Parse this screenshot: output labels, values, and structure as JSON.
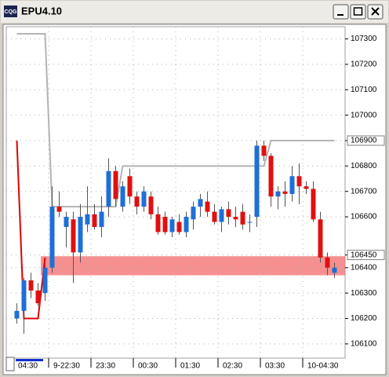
{
  "window": {
    "title": "EPU4.10",
    "icon_label": "CQG"
  },
  "chart_data": {
    "type": "candlestick",
    "categories": [
      "04:30",
      null,
      null,
      null,
      null,
      "9-22:30",
      null,
      null,
      null,
      null,
      null,
      "23:30",
      null,
      null,
      null,
      null,
      null,
      "00:30",
      null,
      null,
      null,
      null,
      null,
      "01:30",
      null,
      null,
      null,
      null,
      null,
      "02:30",
      null,
      null,
      null,
      null,
      null,
      "03:30",
      null,
      null,
      null,
      null,
      null,
      "10-04:30",
      null,
      null,
      null,
      null
    ],
    "open": [
      106200,
      106230,
      106350,
      106310,
      106300,
      106400,
      106640,
      106560,
      106590,
      106460,
      106570,
      106610,
      106560,
      106640,
      106780,
      106640,
      106760,
      106680,
      106640,
      106680,
      106610,
      106600,
      106540,
      106580,
      106540,
      106590,
      106640,
      106660,
      106620,
      106580,
      106630,
      106600,
      106620,
      106580,
      106600,
      106880,
      106840,
      106680,
      106700,
      106690,
      106760,
      106720,
      106710,
      106590,
      106440,
      106380
    ],
    "high": [
      106260,
      106360,
      106380,
      106340,
      106420,
      106720,
      106700,
      106620,
      106620,
      106650,
      106720,
      106650,
      106680,
      106830,
      106800,
      106740,
      106790,
      106700,
      106720,
      106700,
      106640,
      106620,
      106600,
      106610,
      106620,
      106660,
      106690,
      106700,
      106650,
      106640,
      106660,
      106640,
      106650,
      106610,
      106900,
      106900,
      106850,
      106720,
      106740,
      106800,
      106810,
      106740,
      106740,
      106620,
      106460,
      106420
    ],
    "low": [
      106180,
      106140,
      106280,
      106250,
      106270,
      106380,
      106600,
      106480,
      106340,
      106420,
      106540,
      106550,
      106520,
      106600,
      106640,
      106620,
      106650,
      106610,
      106620,
      106590,
      106530,
      106530,
      106520,
      106530,
      106520,
      106550,
      106600,
      106600,
      106570,
      106540,
      106570,
      106560,
      106550,
      106540,
      106560,
      106820,
      106640,
      106630,
      106640,
      106660,
      106650,
      106690,
      106580,
      106420,
      106370,
      106360
    ],
    "close": [
      106230,
      106350,
      106310,
      106260,
      106400,
      106640,
      106620,
      106600,
      106460,
      106600,
      106610,
      106560,
      106620,
      106780,
      106670,
      106720,
      106680,
      106640,
      106700,
      106610,
      106540,
      106540,
      106590,
      106540,
      106600,
      106640,
      106670,
      106620,
      106580,
      106630,
      106600,
      106590,
      106570,
      106580,
      106880,
      106840,
      106680,
      106700,
      106690,
      106760,
      106720,
      106710,
      106590,
      106440,
      106400,
      106400
    ],
    "up_color": "#1e6fd6",
    "down_color": "#e01010",
    "lines": [
      {
        "color": "#e00000",
        "values": [
          106900,
          106200,
          106200,
          106200,
          106440,
          null,
          null,
          null,
          null,
          null,
          null,
          null,
          null,
          null,
          null,
          null,
          null,
          null,
          null,
          null,
          null,
          null,
          null,
          null,
          null,
          null,
          null,
          null,
          null,
          null,
          null,
          null,
          null,
          null,
          null,
          null,
          null,
          null,
          null,
          null,
          null,
          null,
          null,
          null,
          null,
          null
        ]
      },
      {
        "color": "#b4b4b4",
        "values": [
          107320,
          107320,
          107320,
          107320,
          107320,
          106640,
          106640,
          106640,
          106640,
          106640,
          106640,
          106640,
          106640,
          106640,
          106640,
          106800,
          106800,
          106800,
          106800,
          106800,
          106800,
          106800,
          106800,
          106800,
          106800,
          106800,
          106800,
          106800,
          106800,
          106800,
          106800,
          106800,
          106800,
          106800,
          106800,
          106800,
          106900,
          106900,
          106900,
          106900,
          106900,
          106900,
          106900,
          106900,
          106900,
          106900
        ]
      }
    ],
    "band": {
      "range": [
        106370,
        106445
      ],
      "color": "#f36b6b"
    },
    "ylim": [
      106044,
      107348
    ],
    "yticks": [
      107300,
      107200,
      107100,
      107000,
      106900,
      106800,
      106700,
      106600,
      106450,
      106400,
      106300,
      106200,
      106100
    ],
    "boxed_ticks": [
      106900,
      106450
    ],
    "grid": true
  }
}
